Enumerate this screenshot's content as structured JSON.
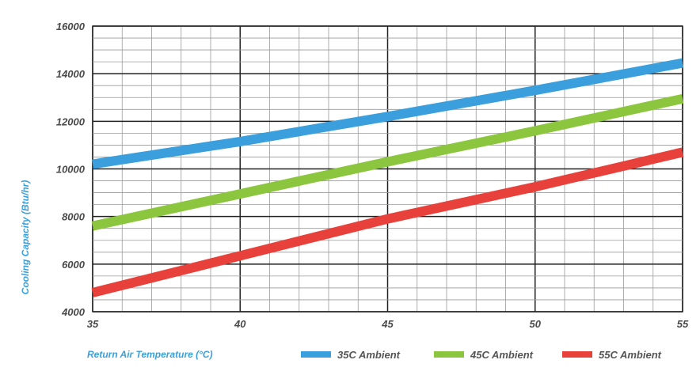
{
  "chart_data": {
    "type": "line",
    "xlabel": "Return Air Temperature (°C)",
    "ylabel": "Cooling Capacity (Btu/hr)",
    "xlim": [
      35,
      55
    ],
    "ylim": [
      4000,
      16000
    ],
    "x_ticks": [
      "35",
      "40",
      "45",
      "50",
      "55"
    ],
    "y_ticks": [
      "4000",
      "6000",
      "8000",
      "10000",
      "12000",
      "14000",
      "16000"
    ],
    "grid": true,
    "legend_position": "bottom",
    "series": [
      {
        "name": "35C Ambient",
        "color": "#3a9fdc",
        "x": [
          35,
          40,
          45,
          50,
          55
        ],
        "values": [
          10200,
          11150,
          12200,
          13300,
          14450
        ]
      },
      {
        "name": "45C Ambient",
        "color": "#8cc63f",
        "x": [
          35,
          40,
          45,
          50,
          55
        ],
        "values": [
          7600,
          8950,
          10300,
          11600,
          12950
        ]
      },
      {
        "name": "55C Ambient",
        "color": "#e8403b",
        "x": [
          35,
          40,
          45,
          50,
          55
        ],
        "values": [
          4800,
          6350,
          7900,
          9250,
          10700
        ]
      }
    ]
  }
}
